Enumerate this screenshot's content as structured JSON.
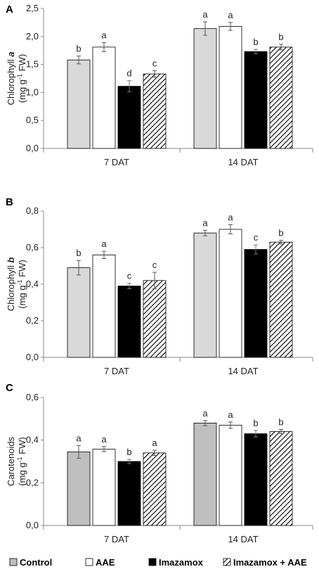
{
  "chart_data": [
    {
      "type": "bar",
      "panel_label": "A",
      "ylabel_line1_text": "Chlorophyll ",
      "ylabel_line1_symbol": "a",
      "ylabel_line2_pre": "(mg g",
      "ylabel_line2_sup": "-1",
      "ylabel_line2_post": " FW)",
      "categories": [
        "7 DAT",
        "14 DAT"
      ],
      "ylim": [
        0,
        2.5
      ],
      "yticks": [
        0,
        0.5,
        1.0,
        1.5,
        2.0,
        2.5
      ],
      "ytick_labels": [
        "0,0",
        "0,5",
        "1,0",
        "1,5",
        "2,0",
        "2,5"
      ],
      "series": [
        {
          "name": "Control",
          "values": [
            1.58,
            2.14
          ],
          "errors": [
            0.07,
            0.12
          ],
          "letters": [
            "b",
            "a"
          ]
        },
        {
          "name": "AAE",
          "values": [
            1.81,
            2.18
          ],
          "errors": [
            0.08,
            0.07
          ],
          "letters": [
            "a",
            "a"
          ]
        },
        {
          "name": "Imazamox",
          "values": [
            1.11,
            1.73
          ],
          "errors": [
            0.1,
            0.04
          ],
          "letters": [
            "d",
            "b"
          ]
        },
        {
          "name": "Imazamox + AAE",
          "values": [
            1.33,
            1.81
          ],
          "errors": [
            0.06,
            0.05
          ],
          "letters": [
            "c",
            "b"
          ]
        }
      ]
    },
    {
      "type": "bar",
      "panel_label": "B",
      "ylabel_line1_text": "Chlorophyll ",
      "ylabel_line1_symbol": "b",
      "ylabel_line2_pre": "(mg g",
      "ylabel_line2_sup": "-1",
      "ylabel_line2_post": " FW)",
      "categories": [
        "7 DAT",
        "14 DAT"
      ],
      "ylim": [
        0,
        0.8
      ],
      "yticks": [
        0,
        0.2,
        0.4,
        0.6,
        0.8
      ],
      "ytick_labels": [
        "0,0",
        "0,2",
        "0,4",
        "0,6",
        "0,8"
      ],
      "series": [
        {
          "name": "Control",
          "values": [
            0.49,
            0.68
          ],
          "errors": [
            0.04,
            0.015
          ],
          "letters": [
            "b",
            "a"
          ]
        },
        {
          "name": "AAE",
          "values": [
            0.56,
            0.7
          ],
          "errors": [
            0.02,
            0.025
          ],
          "letters": [
            "a",
            "a"
          ]
        },
        {
          "name": "Imazamox",
          "values": [
            0.39,
            0.59
          ],
          "errors": [
            0.015,
            0.025
          ],
          "letters": [
            "c",
            "c"
          ]
        },
        {
          "name": "Imazamox + AAE",
          "values": [
            0.42,
            0.63
          ],
          "errors": [
            0.045,
            0.01
          ],
          "letters": [
            "c",
            "b"
          ]
        }
      ]
    },
    {
      "type": "bar",
      "panel_label": "C",
      "ylabel_line1_text": "Carotenoids",
      "ylabel_line1_symbol": "",
      "ylabel_line2_pre": "(mg g",
      "ylabel_line2_sup": "-1",
      "ylabel_line2_post": " FW)",
      "categories": [
        "7 DAT",
        "14 DAT"
      ],
      "ylim": [
        0,
        0.6
      ],
      "yticks": [
        0,
        0.2,
        0.4,
        0.6
      ],
      "ytick_labels": [
        "0,0",
        "0,2",
        "0,4",
        "0,6"
      ],
      "series": [
        {
          "name": "Control",
          "values": [
            0.345,
            0.48
          ],
          "errors": [
            0.03,
            0.012
          ],
          "letters": [
            "a",
            "a"
          ]
        },
        {
          "name": "AAE",
          "values": [
            0.358,
            0.47
          ],
          "errors": [
            0.012,
            0.015
          ],
          "letters": [
            "a",
            "a"
          ]
        },
        {
          "name": "Imazamox",
          "values": [
            0.3,
            0.43
          ],
          "errors": [
            0.01,
            0.015
          ],
          "letters": [
            "b",
            "b"
          ]
        },
        {
          "name": "Imazamox + AAE",
          "values": [
            0.34,
            0.44
          ],
          "errors": [
            0.012,
            0.01
          ],
          "letters": [
            "a",
            "b"
          ]
        }
      ]
    }
  ],
  "legend": {
    "placement": "bottom",
    "items": [
      "Control",
      "AAE",
      "Imazamox",
      "Imazamox + AAE"
    ]
  },
  "colors": {
    "control_panels_ab": "#d9d9d9",
    "control_panel_c": "#bfbfbf",
    "aae": "#ffffff",
    "imazamox": "#000000",
    "hatch": "#000000",
    "axis": "#888888"
  }
}
